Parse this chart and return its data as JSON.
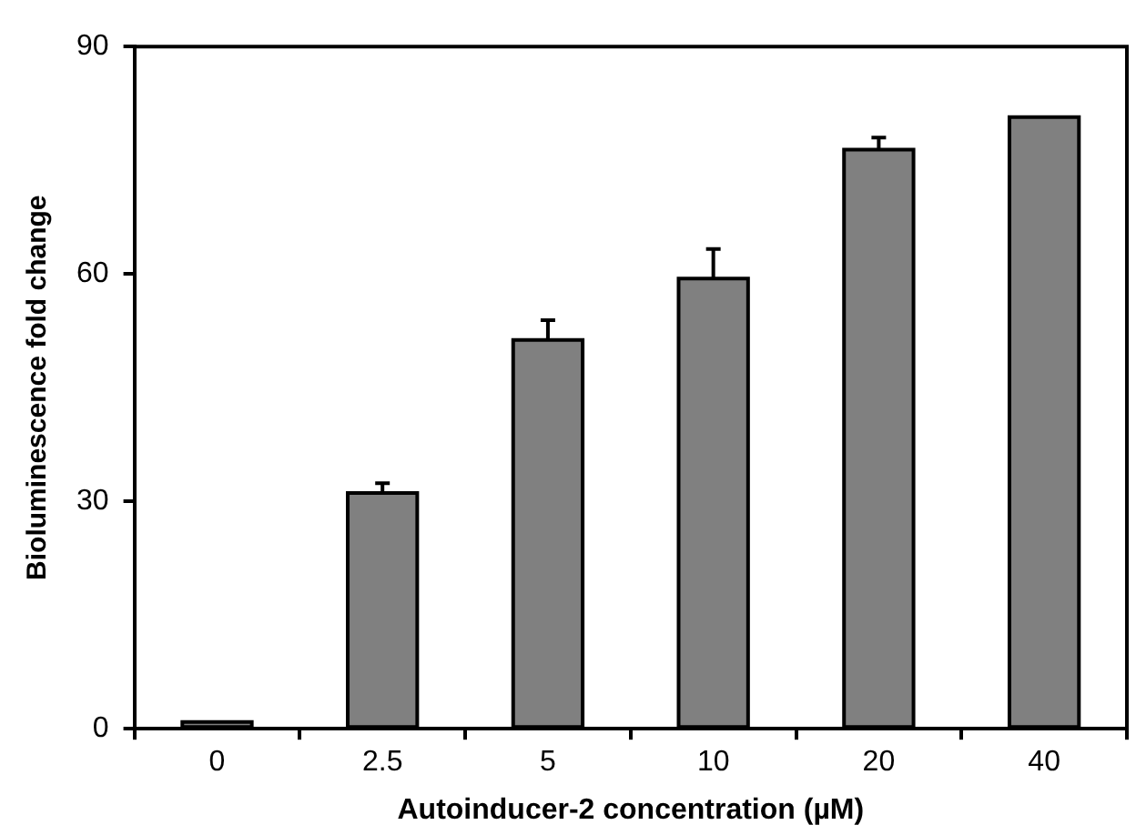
{
  "chart_data": {
    "type": "bar",
    "xlabel": "Autoinducer-2 concentration (µM)",
    "ylabel": "Bioluminescence fold change",
    "categories": [
      "0",
      "2.5",
      "5",
      "10",
      "20",
      "40"
    ],
    "values": [
      0.9,
      31.1,
      51.3,
      59.4,
      76.4,
      80.7
    ],
    "errors": [
      null,
      1.3,
      2.6,
      3.9,
      1.6,
      null
    ],
    "color": "#808080",
    "ylim": [
      0,
      90
    ],
    "yticks": [
      0,
      30,
      60,
      90
    ],
    "grid": false,
    "legend": false
  }
}
